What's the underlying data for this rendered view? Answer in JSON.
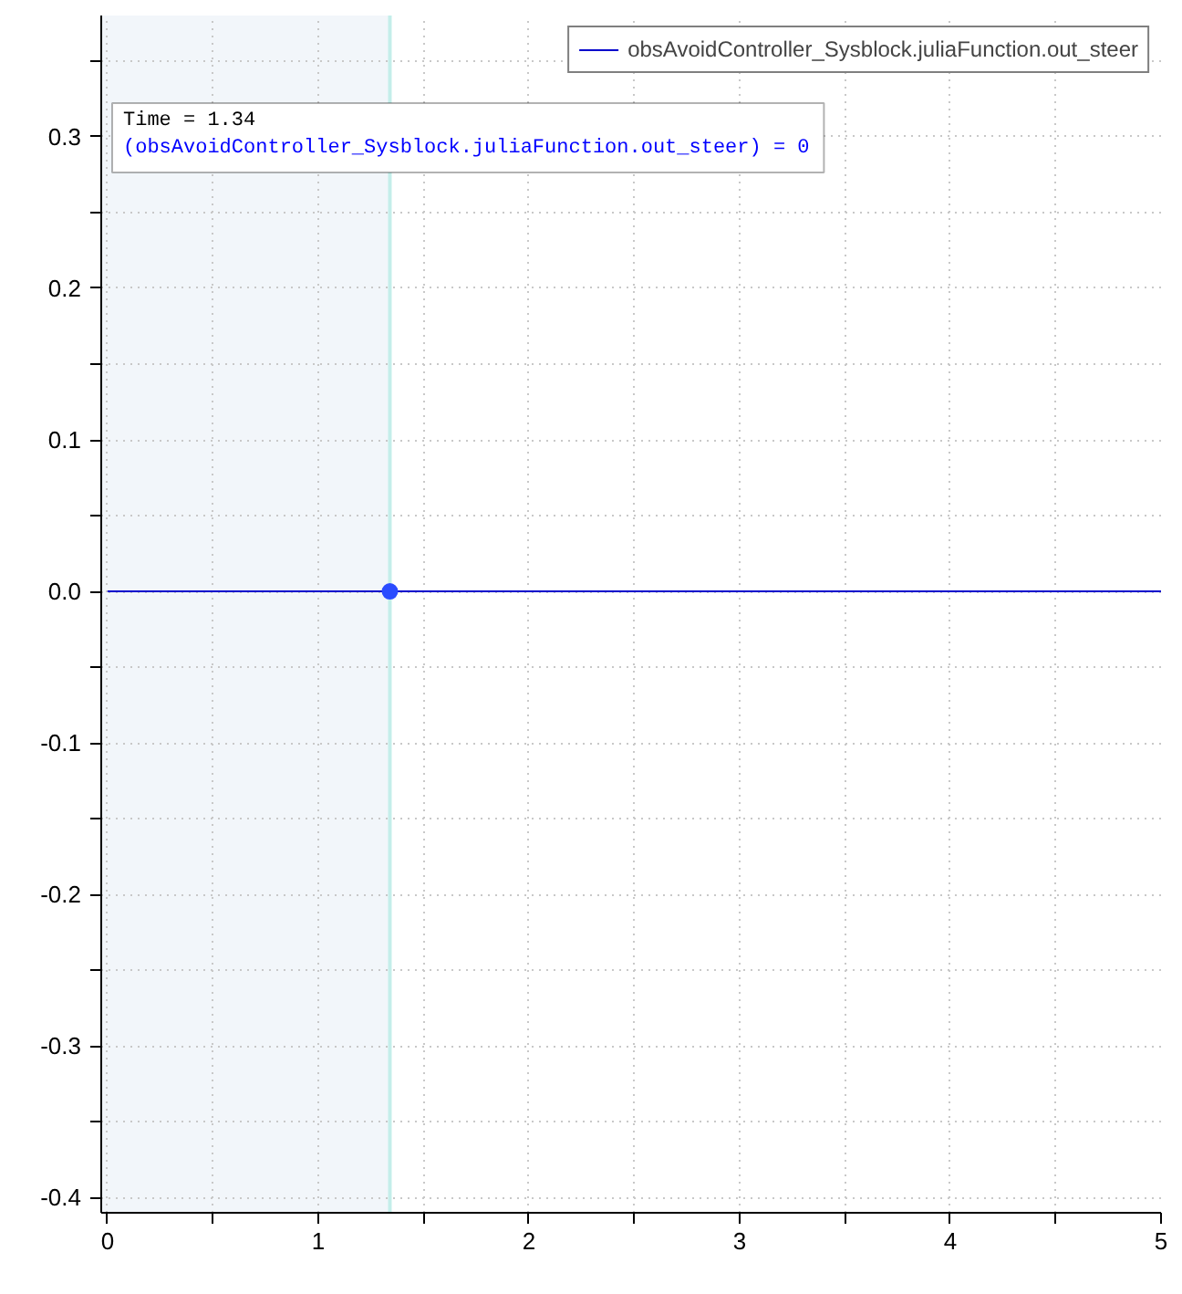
{
  "chart_data": {
    "type": "line",
    "xlim": [
      -0.03,
      5.0
    ],
    "ylim": [
      -0.41,
      0.38
    ],
    "xticks": [
      0,
      {
        "value": 0.5,
        "label": null
      },
      1,
      {
        "value": 1.5,
        "label": null
      },
      2,
      {
        "value": 2.5,
        "label": null
      },
      3,
      {
        "value": 3.5,
        "label": null
      },
      4,
      {
        "value": 4.5,
        "label": null
      },
      5
    ],
    "yticks": [
      -0.4,
      {
        "value": -0.35,
        "label": null
      },
      -0.3,
      {
        "value": -0.25,
        "label": null
      },
      -0.2,
      {
        "value": -0.15,
        "label": null
      },
      -0.1,
      {
        "value": -0.05,
        "label": null
      },
      {
        "value": 0,
        "label": "0.0"
      },
      {
        "value": 0.05,
        "label": null
      },
      0.1,
      {
        "value": 0.15,
        "label": null
      },
      0.2,
      {
        "value": 0.25,
        "label": null
      },
      0.3,
      {
        "value": 0.35,
        "label": null
      }
    ],
    "grid": true,
    "legend": "top right",
    "series": [
      {
        "name": "obsAvoidController_Sysblock.juliaFunction.out_steer",
        "color": "#0000cc",
        "x": [
          0,
          5
        ],
        "values": [
          0,
          0
        ]
      },
      {
        "type": "scatter",
        "marker": "circle",
        "color": "#2b4cff",
        "x": [
          1.34
        ],
        "values": [
          0
        ]
      }
    ],
    "bands": [
      {
        "axis": "x",
        "from": -0.03,
        "to": 1.34,
        "color": "#f2f6fa"
      }
    ],
    "ref_lines": [
      {
        "axis": "x",
        "value": 1.34,
        "color": "#c4eeea"
      }
    ],
    "annotations": [
      "Time = 1.34",
      "(obsAvoidController_Sysblock.juliaFunction.out_steer) = 0"
    ]
  }
}
